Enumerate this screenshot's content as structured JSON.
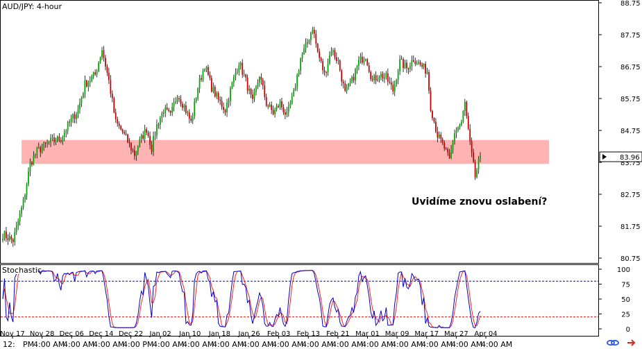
{
  "chart_data": [
    {
      "type": "candlestick",
      "title": "AUD/JPY: 4-hour",
      "ylim": [
        80.75,
        88.75
      ],
      "y_ticks": [
        "88.75",
        "87.75",
        "86.75",
        "85.75",
        "84.75",
        "83.75",
        "82.75",
        "81.75",
        "80.75"
      ],
      "current_price": "83.96",
      "annotation": "Uvidíme znovu oslabení?",
      "zone": {
        "low": 83.7,
        "high": 84.45
      },
      "x_dates": [
        "Nov 17",
        "Nov 28",
        "Dec 06",
        "Dec 14",
        "Dec 22",
        "Jan 02",
        "Jan 10",
        "Jan 18",
        "Jan 26",
        "Feb 03",
        "Feb 13",
        "Feb 21",
        "Mar 01",
        "Mar 09",
        "Mar 17",
        "Mar 27",
        "Apr 04"
      ],
      "x_times": [
        "12:",
        "PM",
        "4:00 AM",
        "4:00 AM",
        "4:00 AM",
        "4:00 PM",
        "4:00 AM",
        "4:00 AM",
        "4:00 AM",
        "4:00 AM",
        "4:00 AM",
        "4:00 AM",
        "4:00 AM",
        "4:00 AM",
        "4:00 AM",
        "4:00 AM",
        "4:00 AM",
        "4:00 AM"
      ],
      "close_path": [
        [
          0,
          81.5
        ],
        [
          3,
          81.3
        ],
        [
          6,
          82.5
        ],
        [
          8,
          83.7
        ],
        [
          10,
          84.1
        ],
        [
          14,
          84.4
        ],
        [
          17,
          84.5
        ],
        [
          19,
          84.9
        ],
        [
          22,
          85.4
        ],
        [
          24,
          86.2
        ],
        [
          27,
          86.5
        ],
        [
          29,
          87.3
        ],
        [
          31,
          86.3
        ],
        [
          33,
          85.0
        ],
        [
          35,
          84.7
        ],
        [
          37,
          84.3
        ],
        [
          38.5,
          84.0
        ],
        [
          40,
          84.4
        ],
        [
          42,
          84.8
        ],
        [
          43.5,
          84.2
        ],
        [
          45,
          84.9
        ],
        [
          47,
          85.4
        ],
        [
          49,
          85.2
        ],
        [
          51,
          85.9
        ],
        [
          53,
          85.5
        ],
        [
          55,
          85.0
        ],
        [
          57,
          86.1
        ],
        [
          59,
          86.8
        ],
        [
          61,
          86.1
        ],
        [
          63,
          85.7
        ],
        [
          65,
          85.4
        ],
        [
          67,
          86.2
        ],
        [
          69,
          86.9
        ],
        [
          71,
          86.3
        ],
        [
          73,
          85.6
        ],
        [
          75,
          86.5
        ],
        [
          77,
          85.6
        ],
        [
          79,
          85.3
        ],
        [
          81,
          85.6
        ],
        [
          83,
          85.2
        ],
        [
          85,
          85.9
        ],
        [
          87,
          87.0
        ],
        [
          89,
          87.5
        ],
        [
          90.5,
          88.0
        ],
        [
          92,
          87.2
        ],
        [
          94,
          86.5
        ],
        [
          96,
          87.3
        ],
        [
          98,
          86.9
        ],
        [
          100,
          85.9
        ],
        [
          102,
          86.3
        ],
        [
          104,
          86.9
        ],
        [
          106,
          87.1
        ],
        [
          108,
          86.3
        ],
        [
          110,
          86.5
        ],
        [
          112,
          86.4
        ],
        [
          114,
          86.0
        ],
        [
          116,
          86.9
        ],
        [
          118,
          86.7
        ],
        [
          120,
          87.0
        ],
        [
          122,
          86.8
        ],
        [
          124,
          86.6
        ],
        [
          125,
          85.5
        ],
        [
          127,
          84.6
        ],
        [
          129,
          84.2
        ],
        [
          130.5,
          83.8
        ],
        [
          132,
          84.7
        ],
        [
          134,
          85.0
        ],
        [
          135,
          85.6
        ],
        [
          136.5,
          84.3
        ],
        [
          138,
          83.3
        ],
        [
          139.5,
          83.96
        ]
      ]
    },
    {
      "type": "line",
      "title": "Stochastic",
      "ylim": [
        0,
        100
      ],
      "y_ticks": [
        "100",
        "75",
        "50",
        "25",
        "0"
      ],
      "levels": [
        80,
        20
      ],
      "series": [
        {
          "color": "#0000cc"
        },
        {
          "color": "#ff2020"
        }
      ]
    }
  ],
  "colors": {
    "bull": "#00aa00",
    "bear": "#cc0000",
    "zone": "#ff9a9a",
    "axis": "#000000"
  },
  "icons": [
    "link-icon",
    "forward-arrow-icon"
  ]
}
